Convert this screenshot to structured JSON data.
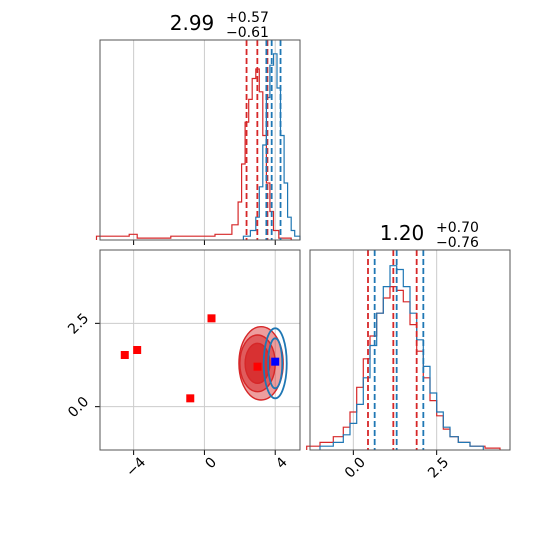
{
  "chart_data": {
    "type": "corner",
    "colors": {
      "red": "#d62728",
      "blue": "#1f77b4",
      "grid": "#cccccc",
      "frame": "#555555",
      "marker_red": "#ff0000",
      "marker_blue": "#0000ff"
    },
    "params": [
      {
        "title_value": "2.99",
        "title_upper": "+0.57",
        "title_lower": "−0.61",
        "range": [
          -5.9,
          5.4
        ],
        "ticks": [
          -4,
          0,
          4
        ],
        "tick_labels": [
          "−4",
          "0",
          "4"
        ]
      },
      {
        "title_value": "1.20",
        "title_upper": "+0.70",
        "title_lower": "−0.76",
        "range": [
          -1.3,
          4.7
        ],
        "ticks": [
          0.0,
          2.5
        ],
        "tick_labels": [
          "0.0",
          "2.5"
        ]
      }
    ],
    "hist1": {
      "red": {
        "x": [
          -5.6,
          -4.6,
          -3.9,
          -3.7,
          -0.1,
          1.3,
          1.8,
          2.0,
          2.2,
          2.4,
          2.6,
          2.8,
          3.0,
          3.2,
          3.4,
          3.6,
          3.8,
          4.0,
          4.4
        ],
        "y": [
          0.02,
          0.02,
          0.03,
          0.01,
          0.02,
          0.03,
          0.08,
          0.2,
          0.4,
          0.62,
          0.74,
          0.85,
          0.9,
          0.78,
          0.55,
          0.3,
          0.15,
          0.05,
          0.01
        ]
      },
      "blue": {
        "x": [
          2.4,
          2.8,
          3.0,
          3.2,
          3.4,
          3.6,
          3.8,
          4.0,
          4.2,
          4.4,
          4.6,
          4.8,
          5.0,
          5.2
        ],
        "y": [
          0.02,
          0.05,
          0.12,
          0.28,
          0.5,
          0.75,
          0.92,
          0.98,
          0.8,
          0.55,
          0.3,
          0.12,
          0.05,
          0.02
        ]
      },
      "red_quantiles": [
        2.38,
        2.99,
        3.56
      ],
      "blue_quantiles": [
        3.5,
        3.8,
        4.3
      ]
    },
    "hist2": {
      "red": {
        "x": [
          -1.2,
          -0.8,
          -0.4,
          -0.2,
          0.0,
          0.2,
          0.4,
          0.6,
          0.8,
          1.0,
          1.2,
          1.4,
          1.6,
          1.8,
          2.0,
          2.2,
          2.4,
          2.6,
          2.8,
          3.0,
          3.3,
          3.7,
          4.2
        ],
        "y": [
          0.02,
          0.04,
          0.07,
          0.12,
          0.2,
          0.33,
          0.48,
          0.6,
          0.72,
          0.8,
          0.86,
          0.84,
          0.78,
          0.66,
          0.52,
          0.38,
          0.26,
          0.18,
          0.11,
          0.07,
          0.04,
          0.02,
          0.01
        ]
      },
      "blue": {
        "x": [
          -0.8,
          -0.4,
          -0.2,
          0.0,
          0.2,
          0.4,
          0.6,
          0.8,
          1.0,
          1.2,
          1.4,
          1.6,
          1.8,
          2.0,
          2.2,
          2.4,
          2.6,
          2.8,
          3.0,
          3.3,
          3.7
        ],
        "y": [
          0.02,
          0.04,
          0.08,
          0.14,
          0.24,
          0.38,
          0.55,
          0.72,
          0.86,
          0.97,
          0.95,
          0.86,
          0.72,
          0.58,
          0.44,
          0.3,
          0.2,
          0.12,
          0.07,
          0.04,
          0.02
        ]
      },
      "red_quantiles": [
        0.44,
        1.2,
        1.9
      ],
      "blue_quantiles": [
        0.64,
        1.3,
        2.1
      ]
    },
    "scatter": {
      "red_contours": [
        {
          "cx": 3.2,
          "cy": 1.3,
          "rx": 2.5,
          "ry": 2.2,
          "opacity": 0.45
        },
        {
          "cx": 3.0,
          "cy": 1.3,
          "rx": 2.0,
          "ry": 1.7,
          "opacity": 0.55
        },
        {
          "cx": 3.0,
          "cy": 1.3,
          "rx": 1.4,
          "ry": 1.2,
          "opacity": 0.8
        }
      ],
      "blue_contours": [
        {
          "cx": 4.0,
          "cy": 1.3,
          "rx": 1.3,
          "ry": 2.1
        },
        {
          "cx": 4.0,
          "cy": 1.3,
          "rx": 0.8,
          "ry": 1.5
        }
      ],
      "red_markers": [
        {
          "x": 0.4,
          "y": 2.65
        },
        {
          "x": -4.5,
          "y": 1.55
        },
        {
          "x": -3.8,
          "y": 1.7
        },
        {
          "x": -0.8,
          "y": 0.25
        },
        {
          "x": 3.0,
          "y": 1.2
        }
      ],
      "blue_markers": [
        {
          "x": 4.0,
          "y": 1.35
        }
      ]
    }
  }
}
